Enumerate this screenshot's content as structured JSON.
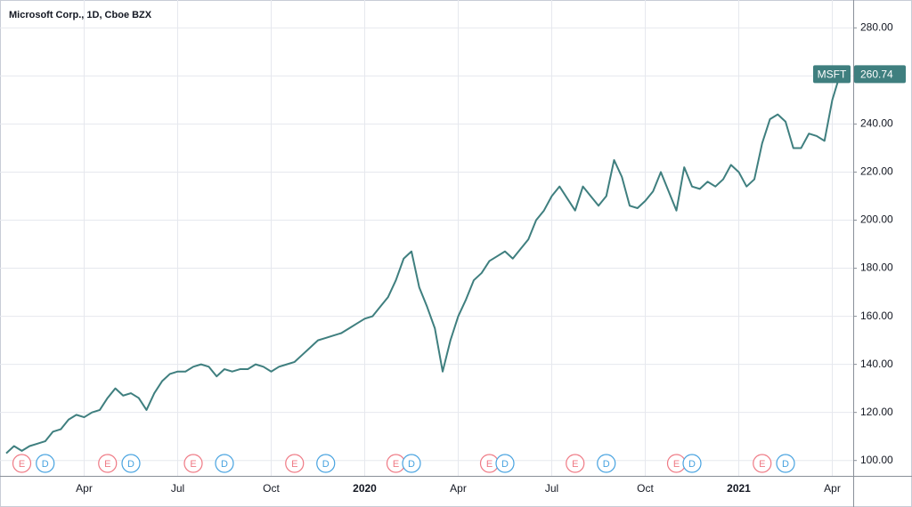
{
  "chart_data": {
    "type": "line",
    "title": "Microsoft Corp., 1D, Cboe BZX",
    "categories": [
      null,
      null,
      null,
      null,
      null,
      null,
      null,
      null,
      null,
      null,
      "Apr",
      null,
      null,
      null,
      null,
      null,
      null,
      null,
      null,
      null,
      null,
      null,
      "Jul",
      null,
      null,
      null,
      null,
      null,
      null,
      null,
      null,
      null,
      null,
      null,
      "Oct",
      null,
      null,
      null,
      null,
      null,
      null,
      null,
      null,
      null,
      null,
      null,
      "2020",
      null,
      null,
      null,
      null,
      null,
      null,
      null,
      null,
      null,
      null,
      null,
      "Apr",
      null,
      null,
      null,
      null,
      null,
      null,
      null,
      null,
      null,
      null,
      null,
      "Jul",
      null,
      null,
      null,
      null,
      null,
      null,
      null,
      null,
      null,
      null,
      null,
      "Oct",
      null,
      null,
      null,
      null,
      null,
      null,
      null,
      null,
      null,
      null,
      null,
      "2021",
      null,
      null,
      null,
      null,
      null,
      null,
      null,
      null,
      null,
      null,
      null,
      "Apr",
      null
    ],
    "series": [
      {
        "name": "MSFT",
        "color": "#3f7f7f",
        "values": [
          103,
          106,
          104,
          106,
          107,
          108,
          112,
          113,
          117,
          119,
          118,
          120,
          121,
          126,
          130,
          127,
          128,
          126,
          121,
          128,
          133,
          136,
          137,
          137,
          139,
          140,
          139,
          135,
          138,
          137,
          138,
          138,
          140,
          139,
          137,
          139,
          140,
          141,
          144,
          147,
          150,
          151,
          152,
          153,
          155,
          157,
          159,
          160,
          164,
          168,
          175,
          184,
          187,
          172,
          164,
          155,
          137,
          150,
          160,
          167,
          175,
          178,
          183,
          185,
          187,
          184,
          188,
          192,
          200,
          204,
          210,
          214,
          209,
          204,
          214,
          210,
          206,
          210,
          225,
          218,
          206,
          205,
          208,
          212,
          220,
          212,
          204,
          222,
          214,
          213,
          216,
          214,
          217,
          223,
          220,
          214,
          217,
          232,
          242,
          244,
          241,
          230,
          230,
          236,
          235,
          233,
          250,
          260.74
        ]
      }
    ],
    "ylim": [
      93.6,
      291.6
    ],
    "yticks": [
      {
        "value": 100,
        "label": "100.00"
      },
      {
        "value": 120,
        "label": "120.00"
      },
      {
        "value": 140,
        "label": "140.00"
      },
      {
        "value": 160,
        "label": "160.00"
      },
      {
        "value": 180,
        "label": "180.00"
      },
      {
        "value": 200,
        "label": "200.00"
      },
      {
        "value": 220,
        "label": "220.00"
      },
      {
        "value": 240,
        "label": "240.00"
      },
      {
        "value": 260,
        "label": "260.00"
      },
      {
        "value": 280,
        "label": "280.00"
      }
    ],
    "grid": true,
    "events": [
      {
        "label": "E",
        "index": 2
      },
      {
        "label": "D",
        "index": 5
      },
      {
        "label": "E",
        "index": 13
      },
      {
        "label": "D",
        "index": 16
      },
      {
        "label": "E",
        "index": 24
      },
      {
        "label": "D",
        "index": 28
      },
      {
        "label": "E",
        "index": 37
      },
      {
        "label": "D",
        "index": 41
      },
      {
        "label": "E",
        "index": 50
      },
      {
        "label": "D",
        "index": 52
      },
      {
        "label": "E",
        "index": 62
      },
      {
        "label": "D",
        "index": 64
      },
      {
        "label": "E",
        "index": 73
      },
      {
        "label": "D",
        "index": 77
      },
      {
        "label": "E",
        "index": 86
      },
      {
        "label": "D",
        "index": 88
      },
      {
        "label": "E",
        "index": 97
      },
      {
        "label": "D",
        "index": 100
      }
    ]
  }
}
